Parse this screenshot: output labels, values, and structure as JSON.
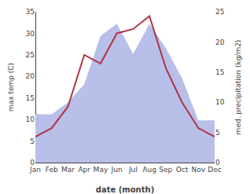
{
  "chart_data": {
    "type": "line",
    "categories": [
      "Jan",
      "Feb",
      "Mar",
      "Apr",
      "May",
      "Jun",
      "Jul",
      "Aug",
      "Sep",
      "Oct",
      "Nov",
      "Dec"
    ],
    "xlabel": "date (month)",
    "ylabel": "max temp (C)",
    "y2label": "med. precipitation (kg/m2)",
    "series": [
      {
        "type": "area",
        "axis": "y2",
        "color": "#b8bfe8",
        "values": [
          8,
          8,
          10,
          13,
          21,
          23,
          18,
          23,
          19,
          14,
          7,
          7
        ]
      },
      {
        "type": "line",
        "color": "#b03545",
        "values": [
          6,
          8,
          13,
          25,
          23,
          30,
          31,
          34,
          22,
          14,
          8,
          6
        ]
      }
    ],
    "ylim": [
      0,
      35
    ],
    "yticks": [
      0,
      5,
      10,
      15,
      20,
      25,
      30,
      35
    ],
    "y2lim": [
      0,
      25
    ],
    "y2ticks": [
      0,
      5,
      10,
      15,
      20,
      25
    ],
    "grid": false
  }
}
